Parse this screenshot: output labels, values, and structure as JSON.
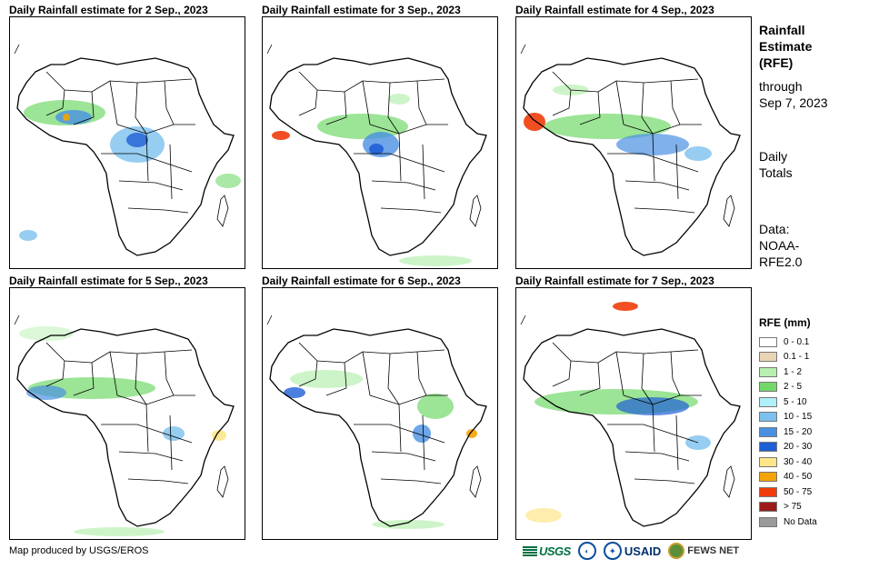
{
  "panels": [
    {
      "title": "Daily Rainfall estimate for 2 Sep., 2023"
    },
    {
      "title": "Daily Rainfall estimate for 3 Sep., 2023"
    },
    {
      "title": "Daily Rainfall estimate for 4 Sep., 2023"
    },
    {
      "title": "Daily Rainfall estimate for 5 Sep., 2023"
    },
    {
      "title": "Daily Rainfall estimate for 6 Sep., 2023"
    },
    {
      "title": "Daily Rainfall estimate for 7 Sep., 2023"
    }
  ],
  "sidebar": {
    "title_line1": "Rainfall",
    "title_line2": "Estimate",
    "title_line3": "(RFE)",
    "through_label": "through",
    "through_date": "Sep 7, 2023",
    "totals_line1": "Daily",
    "totals_line2": "Totals",
    "data_label": "Data:",
    "data_source1": "NOAA-",
    "data_source2": "RFE2.0"
  },
  "legend": {
    "title": "RFE (mm)",
    "items": [
      {
        "label": "0 - 0.1",
        "color": "#ffffff"
      },
      {
        "label": "0.1 - 1",
        "color": "#e8d5b5"
      },
      {
        "label": "1 - 2",
        "color": "#b8f0b0"
      },
      {
        "label": "2 - 5",
        "color": "#72d86a"
      },
      {
        "label": "5 - 10",
        "color": "#b0f0f8"
      },
      {
        "label": "10 - 15",
        "color": "#7cc0ee"
      },
      {
        "label": "15 - 20",
        "color": "#4a90e2"
      },
      {
        "label": "20 - 30",
        "color": "#1f5fd6"
      },
      {
        "label": "30 - 40",
        "color": "#fde68a"
      },
      {
        "label": "40 - 50",
        "color": "#f4a300"
      },
      {
        "label": "50 - 75",
        "color": "#f03c0a"
      },
      {
        "label": "> 75",
        "color": "#9b1b1b"
      },
      {
        "label": "No Data",
        "color": "#9a9a9a"
      }
    ]
  },
  "footer": {
    "credit": "Map produced by USGS/EROS",
    "logo_usgs": "USGS",
    "logo_noaa": "NOAA",
    "logo_usaid": "USAID",
    "logo_fews": "FEWS NET"
  }
}
